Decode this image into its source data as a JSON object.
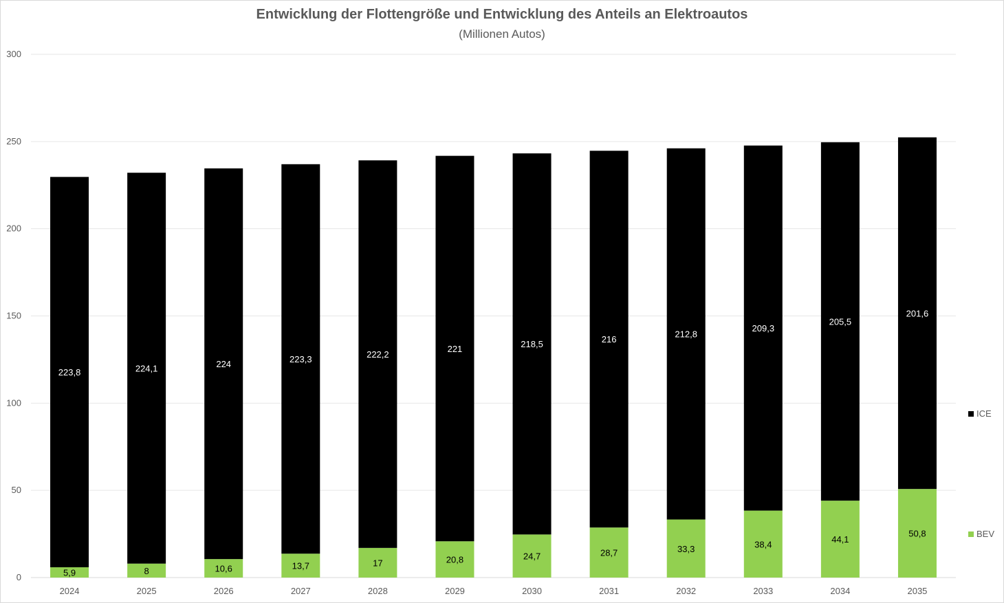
{
  "chart_data": {
    "type": "bar",
    "stacked": true,
    "title": "Entwicklung der Flottengröße und Entwicklung des Anteils an Elektroautos",
    "subtitle": "(Millionen Autos)",
    "categories": [
      "2024",
      "2025",
      "2026",
      "2027",
      "2028",
      "2029",
      "2030",
      "2031",
      "2032",
      "2033",
      "2034",
      "2035"
    ],
    "series": [
      {
        "name": "BEV",
        "color": "#92d050",
        "values": [
          5.9,
          8,
          10.6,
          13.7,
          17,
          20.8,
          24.7,
          28.7,
          33.3,
          38.4,
          44.1,
          50.8
        ],
        "labels": [
          "5,9",
          "8",
          "10,6",
          "13,7",
          "17",
          "20,8",
          "24,7",
          "28,7",
          "33,3",
          "38,4",
          "44,1",
          "50,8"
        ]
      },
      {
        "name": "ICE",
        "color": "#000000",
        "values": [
          223.8,
          224.1,
          224,
          223.3,
          222.2,
          221,
          218.5,
          216,
          212.8,
          209.3,
          205.5,
          201.6
        ],
        "labels": [
          "223,8",
          "224,1",
          "224",
          "223,3",
          "222,2",
          "221",
          "218,5",
          "216",
          "212,8",
          "209,3",
          "205,5",
          "201,6"
        ]
      }
    ],
    "ylim": [
      0,
      300
    ],
    "yticks": [
      "0",
      "50",
      "100",
      "150",
      "200",
      "250",
      "300"
    ],
    "grid": true,
    "legend_position": "right"
  }
}
